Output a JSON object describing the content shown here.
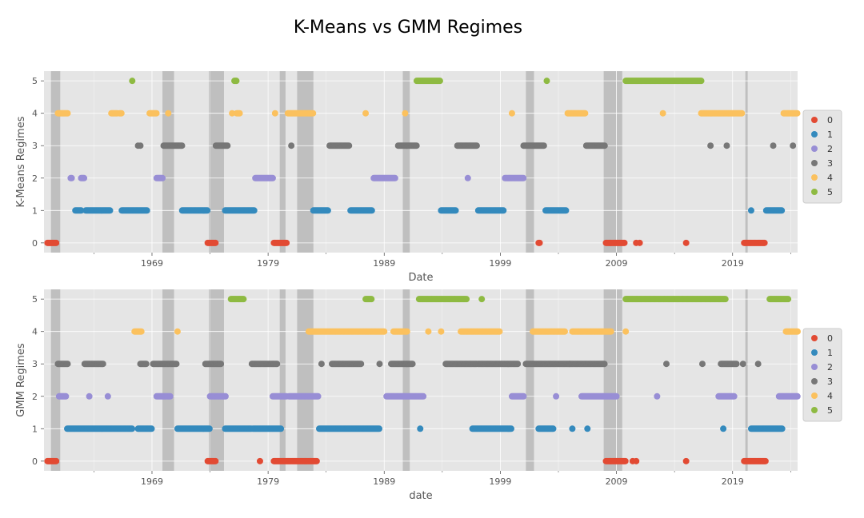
{
  "figure_title": "K-Means vs GMM Regimes",
  "colors": {
    "plot_bg": "#e5e5e5",
    "grid": "#ffffff",
    "recession": "#bfbfbf",
    "regimes": [
      "#e24a33",
      "#348abd",
      "#988ed5",
      "#777777",
      "#fbc15e",
      "#8eba42"
    ]
  },
  "chart_data": [
    {
      "type": "scatter",
      "title": "",
      "xlabel": "Date",
      "ylabel": "K-Means Regimes",
      "xlim": [
        1959.7,
        2024.6
      ],
      "ylim": [
        -0.3,
        5.3
      ],
      "xticks": [
        1969,
        1979,
        1989,
        1999,
        2009,
        2019
      ],
      "yticks": [
        0,
        1,
        2,
        3,
        4,
        5
      ],
      "grid": true,
      "legend": {
        "placement": "right",
        "entries": [
          "0",
          "1",
          "2",
          "3",
          "4",
          "5"
        ]
      },
      "recession_bands": [
        [
          1960.3,
          1961.1
        ],
        [
          1969.9,
          1970.9
        ],
        [
          1973.9,
          1975.2
        ],
        [
          1980.0,
          1980.5
        ],
        [
          1981.5,
          1982.9
        ],
        [
          1990.6,
          1991.2
        ],
        [
          2001.2,
          2001.9
        ],
        [
          2007.9,
          2009.5
        ],
        [
          2020.1,
          2020.3
        ]
      ],
      "regime_runs": [
        [
          1960.0,
          1960.8,
          0
        ],
        [
          1960.9,
          1961.8,
          4
        ],
        [
          1962.0,
          1962.1,
          2
        ],
        [
          1962.4,
          1962.9,
          1
        ],
        [
          1962.9,
          1963.2,
          2
        ],
        [
          1963.3,
          1965.4,
          1
        ],
        [
          1965.5,
          1966.0,
          4
        ],
        [
          1966.2,
          1966.4,
          4
        ],
        [
          1966.4,
          1968.6,
          1
        ],
        [
          1968.8,
          1969.4,
          4
        ],
        [
          1969.4,
          1969.9,
          2
        ],
        [
          1970.0,
          1971.6,
          3
        ],
        [
          1971.6,
          1973.8,
          1
        ],
        [
          1973.8,
          1974.5,
          0
        ],
        [
          1974.5,
          1975.5,
          3
        ],
        [
          1975.3,
          1977.8,
          1
        ],
        [
          1976.1,
          1976.3,
          5
        ],
        [
          1976.3,
          1976.6,
          4
        ],
        [
          1977.9,
          1979.4,
          2
        ],
        [
          1979.5,
          1980.6,
          0
        ],
        [
          1980.7,
          1982.9,
          4
        ],
        [
          1982.9,
          1984.2,
          1
        ],
        [
          1984.3,
          1986.0,
          3
        ],
        [
          1986.1,
          1988.0,
          1
        ],
        [
          1988.1,
          1990.0,
          2
        ],
        [
          1990.2,
          1991.8,
          3
        ],
        [
          1991.8,
          1993.8,
          5
        ],
        [
          1993.9,
          1995.2,
          1
        ],
        [
          1995.3,
          1997.0,
          3
        ],
        [
          1997.1,
          1999.3,
          1
        ],
        [
          1999.4,
          2001.0,
          2
        ],
        [
          2001.0,
          2002.8,
          3
        ],
        [
          2002.3,
          2002.4,
          0
        ],
        [
          2002.9,
          2004.7,
          1
        ],
        [
          2004.8,
          2006.3,
          4
        ],
        [
          2006.4,
          2008.0,
          3
        ],
        [
          2008.1,
          2009.7,
          0
        ],
        [
          2009.8,
          2016.3,
          5
        ],
        [
          2016.3,
          2019.8,
          4
        ],
        [
          2020.0,
          2021.8,
          0
        ],
        [
          2021.9,
          2023.3,
          1
        ],
        [
          2023.4,
          2024.6,
          4
        ]
      ],
      "sparse_points": [
        [
          1967.3,
          5
        ],
        [
          1967.8,
          3
        ],
        [
          1968.0,
          3
        ],
        [
          1970.4,
          4
        ],
        [
          1975.9,
          4
        ],
        [
          1979.6,
          4
        ],
        [
          1981.0,
          3
        ],
        [
          1982.4,
          4
        ],
        [
          1987.4,
          4
        ],
        [
          1990.8,
          4
        ],
        [
          1994.6,
          1
        ],
        [
          1996.2,
          2
        ],
        [
          2000.0,
          4
        ],
        [
          2003.0,
          5
        ],
        [
          2010.7,
          0
        ],
        [
          2011.0,
          0
        ],
        [
          2013.0,
          4
        ],
        [
          2015.0,
          0
        ],
        [
          2017.1,
          3
        ],
        [
          2018.5,
          3
        ],
        [
          2020.6,
          1
        ],
        [
          2022.5,
          3
        ],
        [
          2024.2,
          3
        ]
      ]
    },
    {
      "type": "scatter",
      "title": "",
      "xlabel": "date",
      "ylabel": "GMM Regimes",
      "xlim": [
        1959.7,
        2024.6
      ],
      "ylim": [
        -0.3,
        5.3
      ],
      "xticks": [
        1969,
        1979,
        1989,
        1999,
        2009,
        2019
      ],
      "yticks": [
        0,
        1,
        2,
        3,
        4,
        5
      ],
      "grid": true,
      "legend": {
        "placement": "right",
        "entries": [
          "0",
          "1",
          "2",
          "3",
          "4",
          "5"
        ]
      },
      "recession_bands": [
        [
          1960.3,
          1961.1
        ],
        [
          1969.9,
          1970.9
        ],
        [
          1973.9,
          1975.2
        ],
        [
          1980.0,
          1980.5
        ],
        [
          1981.5,
          1982.9
        ],
        [
          1990.6,
          1991.2
        ],
        [
          2001.2,
          2001.9
        ],
        [
          2007.9,
          2009.5
        ],
        [
          2020.1,
          2020.3
        ]
      ],
      "regime_runs": [
        [
          1960.0,
          1960.8,
          0
        ],
        [
          1960.9,
          1961.8,
          3
        ],
        [
          1961.0,
          1961.6,
          2
        ],
        [
          1961.7,
          1967.3,
          1
        ],
        [
          1963.2,
          1964.8,
          3
        ],
        [
          1967.5,
          1968.1,
          4
        ],
        [
          1967.8,
          1969.0,
          1
        ],
        [
          1968.0,
          1968.5,
          3
        ],
        [
          1969.1,
          1971.1,
          3
        ],
        [
          1969.4,
          1970.6,
          2
        ],
        [
          1971.2,
          1974.0,
          1
        ],
        [
          1973.8,
          1974.5,
          0
        ],
        [
          1973.6,
          1975.0,
          3
        ],
        [
          1974.0,
          1975.4,
          2
        ],
        [
          1975.3,
          1977.6,
          1
        ],
        [
          1975.8,
          1976.9,
          5
        ],
        [
          1977.6,
          1979.8,
          3
        ],
        [
          1977.6,
          1980.1,
          1
        ],
        [
          1979.4,
          1980.6,
          2
        ],
        [
          1979.5,
          1981.0,
          0
        ],
        [
          1981.1,
          1983.2,
          0
        ],
        [
          1980.8,
          1983.3,
          2
        ],
        [
          1982.5,
          1985.0,
          4
        ],
        [
          1983.4,
          1988.6,
          1
        ],
        [
          1984.5,
          1987.0,
          3
        ],
        [
          1985.0,
          1989.0,
          4
        ],
        [
          1987.4,
          1987.9,
          5
        ],
        [
          1989.2,
          1992.4,
          2
        ],
        [
          1989.6,
          1991.5,
          3
        ],
        [
          1989.8,
          1991.0,
          4
        ],
        [
          1992.0,
          1996.1,
          5
        ],
        [
          1994.3,
          1997.0,
          3
        ],
        [
          1995.6,
          1999.0,
          4
        ],
        [
          1996.6,
          2000.0,
          1
        ],
        [
          1997.0,
          2000.5,
          3
        ],
        [
          2000.0,
          2001.0,
          2
        ],
        [
          2001.2,
          2005.0,
          3
        ],
        [
          2001.8,
          2004.6,
          4
        ],
        [
          2002.3,
          2003.6,
          1
        ],
        [
          2004.8,
          2008.0,
          3
        ],
        [
          2005.2,
          2008.6,
          4
        ],
        [
          2006.0,
          2009.0,
          2
        ],
        [
          2008.1,
          2009.8,
          0
        ],
        [
          2009.8,
          2018.4,
          5
        ],
        [
          2017.8,
          2019.2,
          2
        ],
        [
          2018.0,
          2019.4,
          3
        ],
        [
          2020.0,
          2021.9,
          0
        ],
        [
          2020.6,
          2023.3,
          1
        ],
        [
          2022.2,
          2023.8,
          5
        ],
        [
          2023.0,
          2024.6,
          2
        ],
        [
          2023.6,
          2024.6,
          4
        ]
      ],
      "sparse_points": [
        [
          1963.6,
          2
        ],
        [
          1965.2,
          2
        ],
        [
          1971.2,
          4
        ],
        [
          1978.3,
          0
        ],
        [
          1983.6,
          3
        ],
        [
          1988.6,
          3
        ],
        [
          1992.1,
          1
        ],
        [
          1992.8,
          4
        ],
        [
          1993.9,
          4
        ],
        [
          1997.4,
          5
        ],
        [
          2002.2,
          4
        ],
        [
          2003.8,
          2
        ],
        [
          2005.2,
          1
        ],
        [
          2006.5,
          1
        ],
        [
          2009.8,
          4
        ],
        [
          2010.4,
          0
        ],
        [
          2010.7,
          0
        ],
        [
          2012.5,
          2
        ],
        [
          2013.3,
          3
        ],
        [
          2015.0,
          0
        ],
        [
          2016.4,
          3
        ],
        [
          2018.2,
          1
        ],
        [
          2019.9,
          3
        ],
        [
          2021.2,
          3
        ]
      ]
    }
  ]
}
